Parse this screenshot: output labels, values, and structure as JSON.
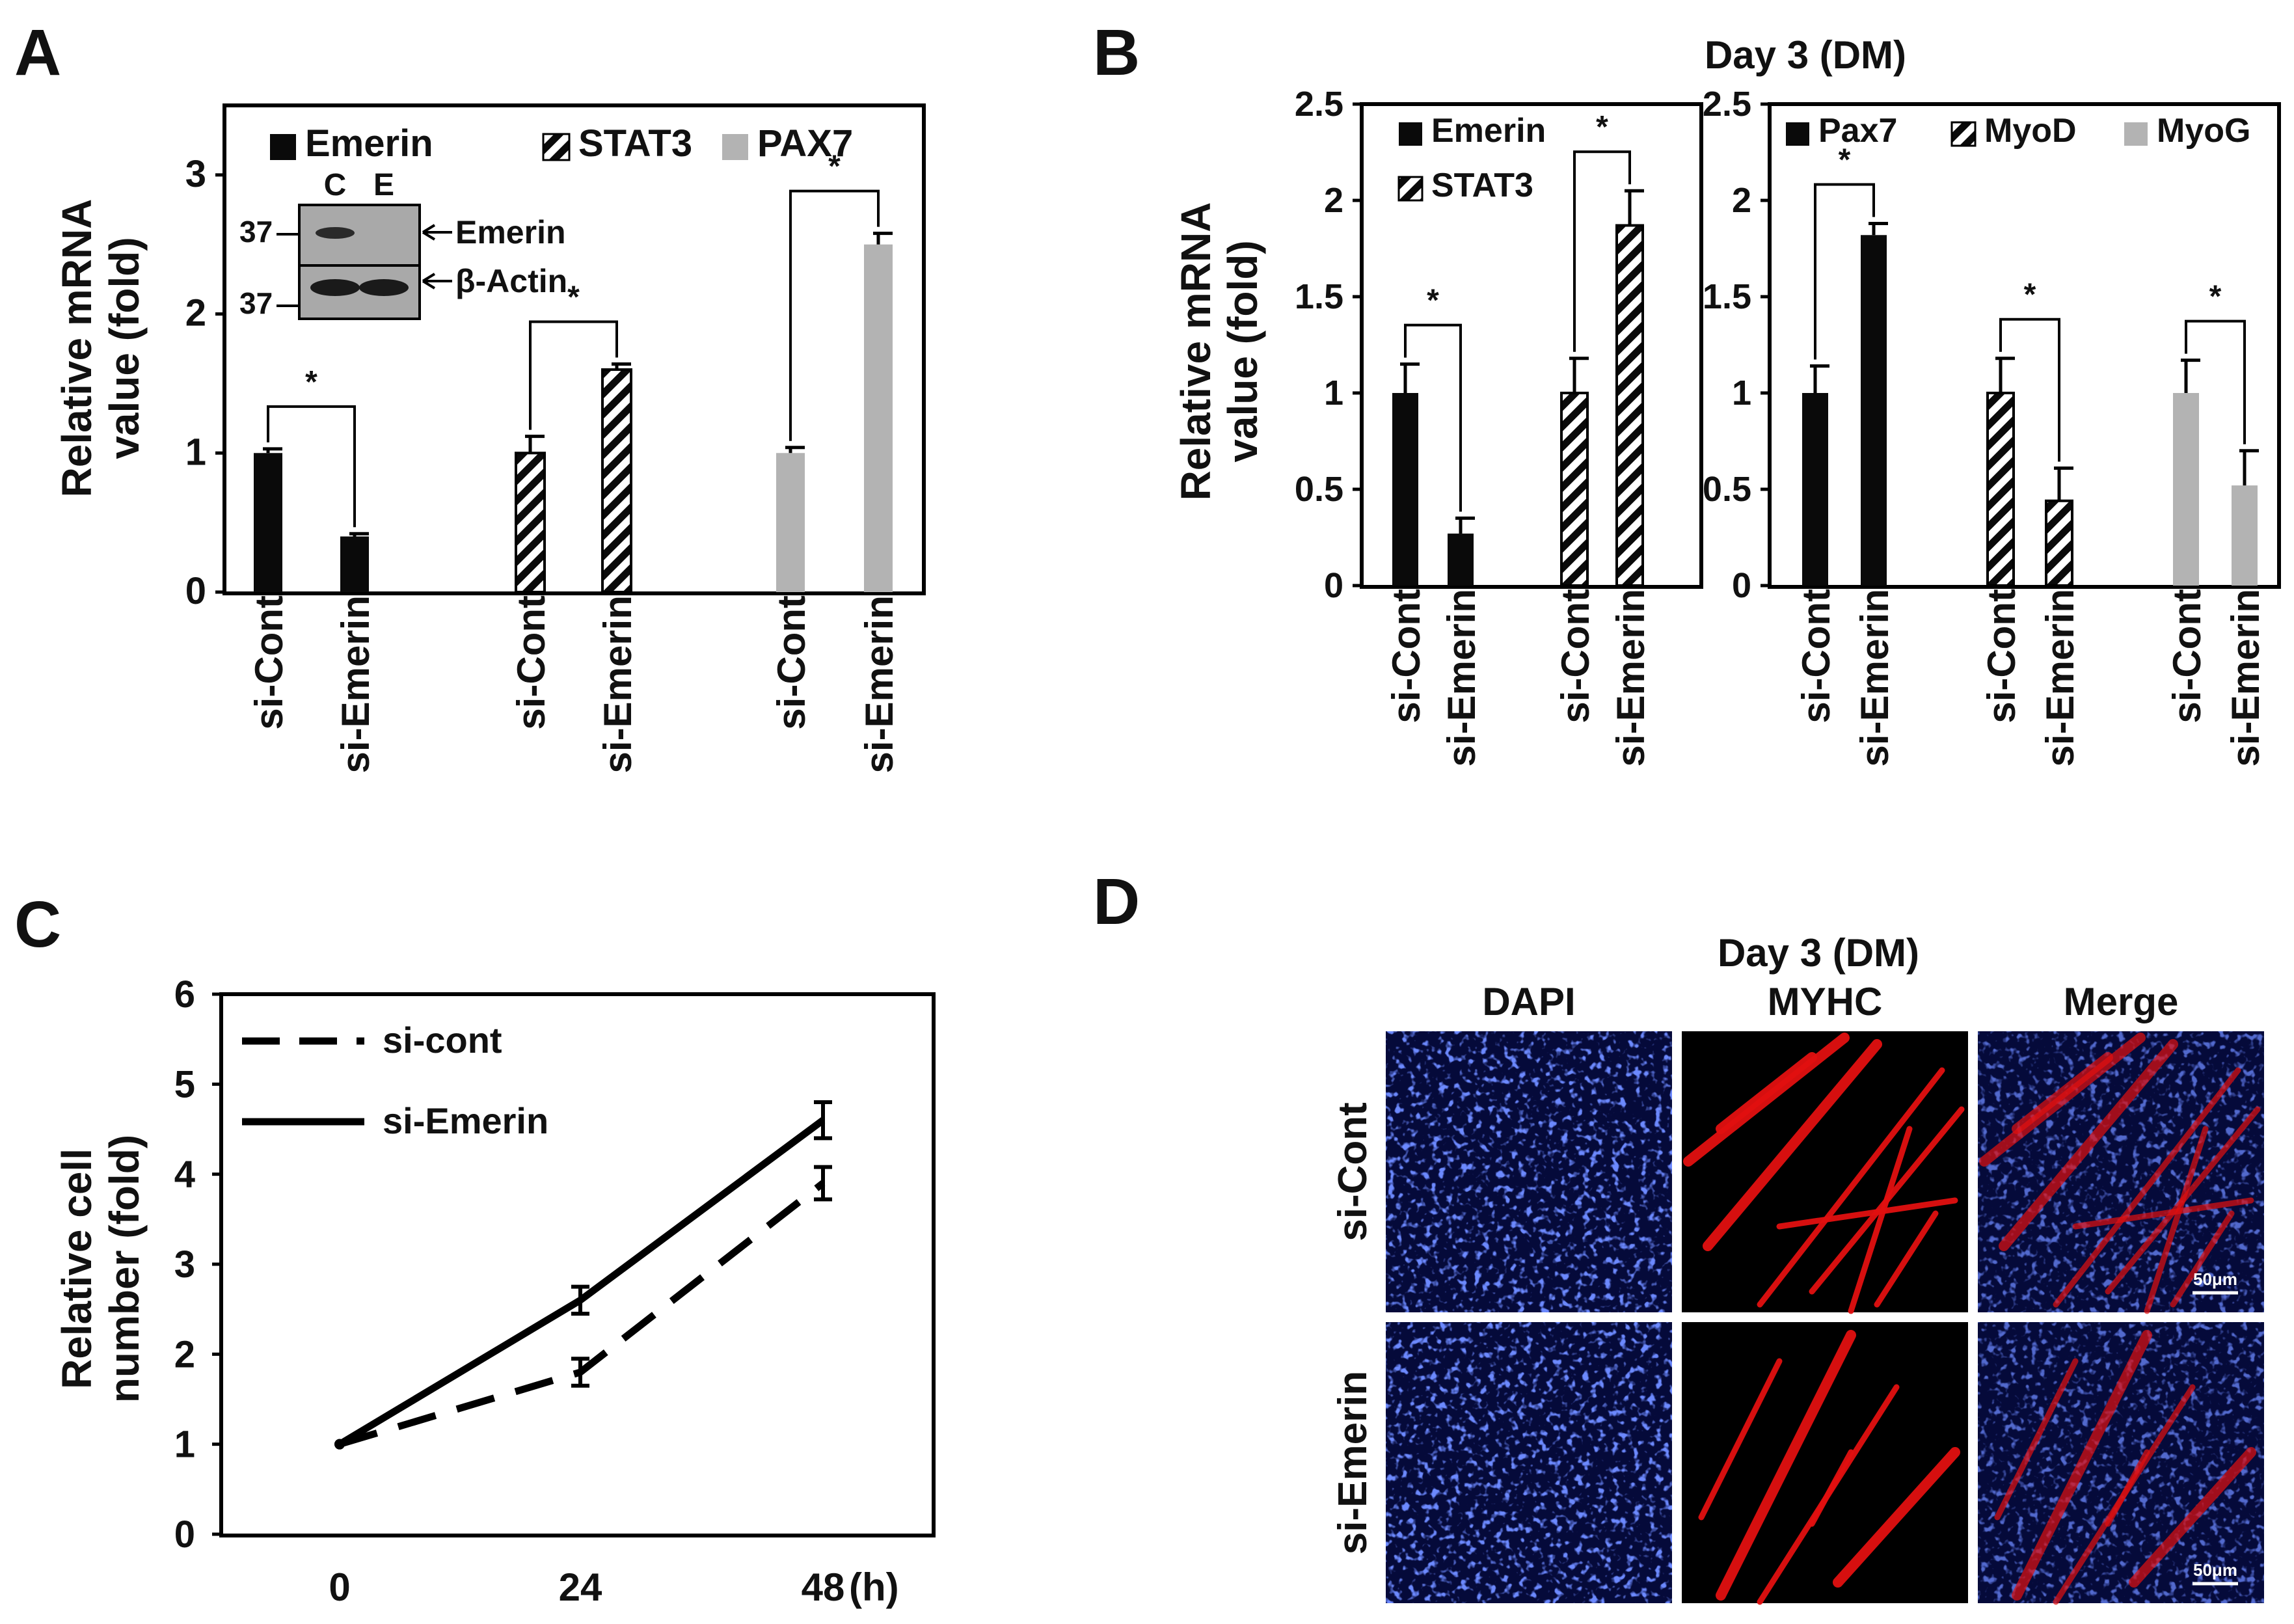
{
  "colors": {
    "black": "#0a0a0a",
    "gray": "#b3b3b3",
    "dapi": "#1b2fb8",
    "myhc": "#e21010",
    "axis": "#000000"
  },
  "panels": {
    "A": {
      "letter": "A",
      "ylabel_1": "Relative mRNA",
      "ylabel_2": "value (fold)",
      "blot": {
        "lane_c": "C",
        "lane_e": "E",
        "mw_top": "37",
        "mw_bottom": "37",
        "label_top": "Emerin",
        "label_bottom": "β-Actin"
      }
    },
    "B": {
      "letter": "B",
      "title": "Day 3 (DM)",
      "ylabel_1": "Relative mRNA",
      "ylabel_2": "value (fold)"
    },
    "C": {
      "letter": "C",
      "ylabel_1": "Relative cell",
      "ylabel_2": "number (fold)",
      "x_unit": "(h)"
    },
    "D": {
      "letter": "D",
      "title": "Day 3 (DM)",
      "col_labels": [
        "DAPI",
        "MYHC",
        "Merge"
      ],
      "row_labels": [
        "si-Cont",
        "si-Emerin"
      ],
      "scale_bar": "50μm"
    }
  },
  "chart_data": [
    {
      "id": "A",
      "type": "bar",
      "ylim": [
        0,
        3.5
      ],
      "yticks": [
        0,
        1,
        2,
        3
      ],
      "legend": [
        {
          "name": "Emerin",
          "fill": "solid-black"
        },
        {
          "name": "STAT3",
          "fill": "hatched"
        },
        {
          "name": "PAX7",
          "fill": "gray"
        }
      ],
      "groups": [
        {
          "series": "Emerin",
          "fill": "solid-black",
          "categories": [
            "si-Cont",
            "si-Emerin"
          ],
          "values": [
            1.0,
            0.4
          ],
          "errors": [
            0.03,
            0.02
          ],
          "sig": "*"
        },
        {
          "series": "STAT3",
          "fill": "hatched",
          "categories": [
            "si-Cont",
            "si-Emerin"
          ],
          "values": [
            1.0,
            1.6
          ],
          "errors": [
            0.12,
            0.04
          ],
          "sig": "*"
        },
        {
          "series": "PAX7",
          "fill": "gray",
          "categories": [
            "si-Cont",
            "si-Emerin"
          ],
          "values": [
            1.0,
            2.5
          ],
          "errors": [
            0.04,
            0.08
          ],
          "sig": "*"
        }
      ]
    },
    {
      "id": "B1",
      "type": "bar",
      "ylim": [
        0,
        2.5
      ],
      "yticks": [
        "0",
        "0.5",
        "1",
        "1.5",
        "2",
        "2.5"
      ],
      "legend": [
        {
          "name": "Emerin",
          "fill": "solid-black"
        },
        {
          "name": "STAT3",
          "fill": "hatched"
        }
      ],
      "groups": [
        {
          "series": "Emerin",
          "fill": "solid-black",
          "categories": [
            "si-Cont",
            "si-Emerin"
          ],
          "values": [
            1.0,
            0.27
          ],
          "errors": [
            0.15,
            0.08
          ],
          "sig": "*"
        },
        {
          "series": "STAT3",
          "fill": "hatched",
          "categories": [
            "si-Cont",
            "si-Emerin"
          ],
          "values": [
            1.0,
            1.87
          ],
          "errors": [
            0.18,
            0.18
          ],
          "sig": "*"
        }
      ]
    },
    {
      "id": "B2",
      "type": "bar",
      "ylim": [
        0,
        2.5
      ],
      "yticks": [
        "0",
        "0.5",
        "1",
        "1.5",
        "2",
        "2.5"
      ],
      "legend": [
        {
          "name": "Pax7",
          "fill": "solid-black"
        },
        {
          "name": "MyoD",
          "fill": "hatched"
        },
        {
          "name": "MyoG",
          "fill": "gray"
        }
      ],
      "groups": [
        {
          "series": "Pax7",
          "fill": "solid-black",
          "categories": [
            "si-Cont",
            "si-Emerin"
          ],
          "values": [
            1.0,
            1.82
          ],
          "errors": [
            0.14,
            0.06
          ],
          "sig": "*"
        },
        {
          "series": "MyoD",
          "fill": "hatched",
          "categories": [
            "si-Cont",
            "si-Emerin"
          ],
          "values": [
            1.0,
            0.44
          ],
          "errors": [
            0.18,
            0.17
          ],
          "sig": "*"
        },
        {
          "series": "MyoG",
          "fill": "gray",
          "categories": [
            "si-Cont",
            "si-Emerin"
          ],
          "values": [
            1.0,
            0.52
          ],
          "errors": [
            0.17,
            0.18
          ],
          "sig": "*"
        }
      ]
    },
    {
      "id": "C",
      "type": "line",
      "ylim": [
        0,
        6
      ],
      "yticks": [
        0,
        1,
        2,
        3,
        4,
        5,
        6
      ],
      "x": [
        0,
        24,
        48
      ],
      "xticks": [
        "0",
        "24",
        "48"
      ],
      "series": [
        {
          "name": "si-cont",
          "style": "dashed",
          "values": [
            1.0,
            1.8,
            3.9
          ],
          "errors": [
            0.03,
            0.15,
            0.18
          ]
        },
        {
          "name": "si-Emerin",
          "style": "solid",
          "values": [
            1.0,
            2.6,
            4.6
          ],
          "errors": [
            0.03,
            0.15,
            0.2
          ]
        }
      ]
    }
  ]
}
